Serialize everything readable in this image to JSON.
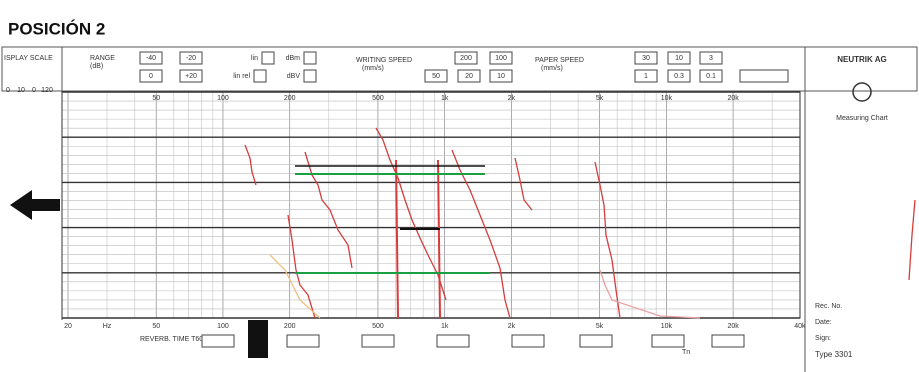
{
  "title": "POSICIÓN 2",
  "header": {
    "display_scale": "ISPLAY SCALE",
    "range": "RANGE",
    "range_unit": "(dB)",
    "range_buttons": [
      "-40",
      "-20",
      "0",
      "+20"
    ],
    "lin": "lin",
    "dbm": "dBm",
    "lin_rel": "lin rel",
    "dbv": "dBV",
    "writing_speed": "WRITING SPEED",
    "writing_unit": "(mm/s)",
    "writing_buttons": [
      "200",
      "100",
      "50",
      "20",
      "10"
    ],
    "paper_speed": "PAPER SPEED",
    "paper_unit": "(mm/s)",
    "paper_buttons": [
      "30",
      "10",
      "3",
      "1",
      "0.3",
      "0.1"
    ]
  },
  "brand": {
    "name": "NEUTRIK AG",
    "tagline": "Measuring Chart"
  },
  "chart": {
    "top_freqs": [
      "50",
      "100",
      "200",
      "500",
      "1k",
      "2k",
      "5k",
      "10k",
      "20k"
    ],
    "bottom_freqs": [
      "20",
      "Hz",
      "50",
      "100",
      "200",
      "500",
      "1k",
      "2k",
      "5k",
      "10k",
      "20k",
      "40k"
    ],
    "left_scale": [
      "0",
      "10",
      "0",
      "120"
    ],
    "reverb_label": "REVERB. TIME T60",
    "tn": "Tn"
  },
  "footer": {
    "rec": "Rec. No.",
    "date": "Date:",
    "sign": "Sign:",
    "type": "Type 3301"
  }
}
